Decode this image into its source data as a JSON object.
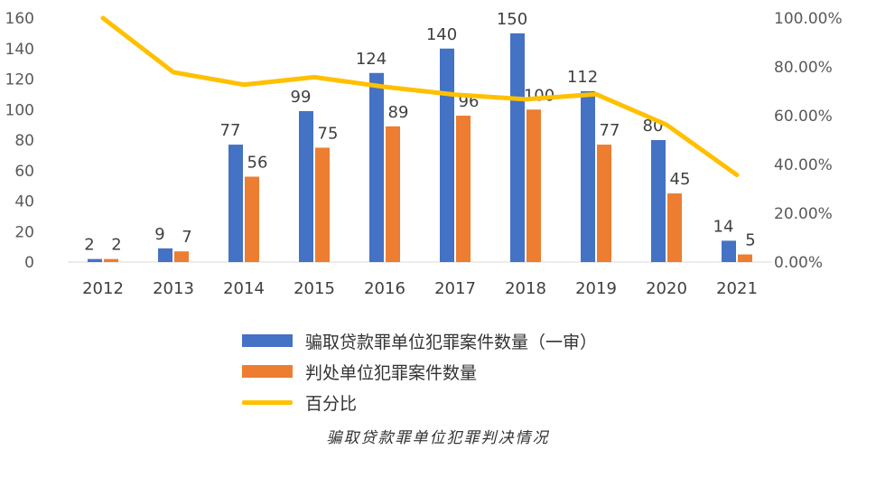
{
  "chart_data": {
    "type": "bar",
    "categories": [
      "2012",
      "2013",
      "2014",
      "2015",
      "2016",
      "2017",
      "2018",
      "2019",
      "2020",
      "2021"
    ],
    "series": [
      {
        "name": "骗取贷款罪单位犯罪案件数量（一审）",
        "kind": "bar",
        "axis": "left",
        "color": "#4472C4",
        "values": [
          2,
          9,
          77,
          99,
          124,
          140,
          150,
          112,
          80,
          14
        ]
      },
      {
        "name": "判处单位犯罪案件数量",
        "kind": "bar",
        "axis": "left",
        "color": "#ED7D31",
        "values": [
          2,
          7,
          56,
          75,
          89,
          96,
          100,
          77,
          45,
          5
        ]
      },
      {
        "name": "百分比",
        "kind": "line",
        "axis": "right",
        "color": "#FFC000",
        "values": [
          100.0,
          77.8,
          72.7,
          75.8,
          71.8,
          68.6,
          66.7,
          68.8,
          56.3,
          35.7
        ]
      }
    ],
    "ylim": [
      0,
      160
    ],
    "yticks": [
      "0",
      "20",
      "40",
      "60",
      "80",
      "100",
      "120",
      "140",
      "160"
    ],
    "y2lim": [
      0,
      100
    ],
    "y2ticks": [
      "0.00%",
      "20.00%",
      "40.00%",
      "60.00%",
      "80.00%",
      "100.00%"
    ],
    "legend_position": "bottom",
    "grid": false
  },
  "caption": "骗取贷款罪单位犯罪判决情况"
}
